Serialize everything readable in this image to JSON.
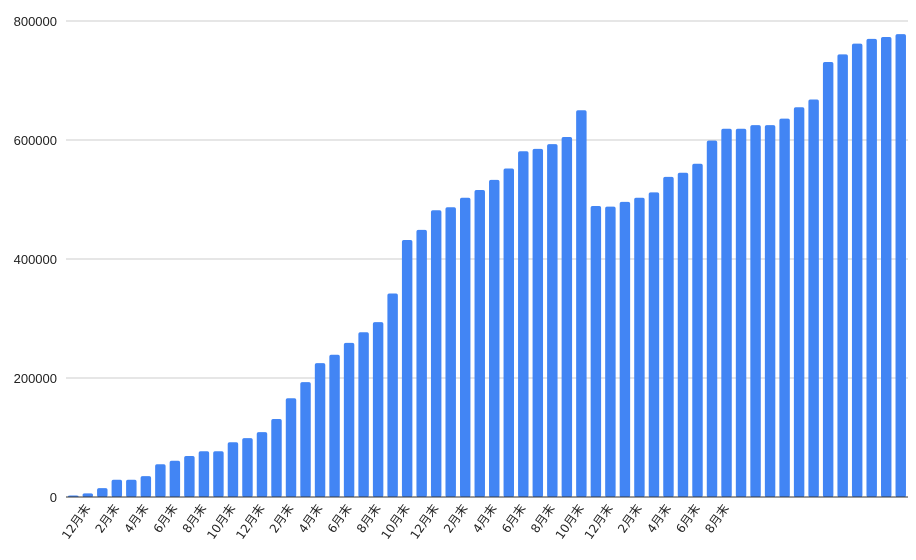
{
  "chart_data": {
    "type": "bar",
    "title": "",
    "xlabel": "",
    "ylabel": "",
    "ylim": [
      0,
      800000
    ],
    "yticks": [
      "0",
      "200000",
      "400000",
      "600000",
      "800000"
    ],
    "grid": true,
    "legend": "none",
    "bar_color": "#4285f4",
    "x_labels_shown": [
      "12月末",
      "2月末",
      "4月末",
      "6月末",
      "8月末",
      "10月末",
      "12月末",
      "2月末",
      "4月末",
      "6月末",
      "8月末",
      "10月末",
      "12月末",
      "2月末",
      "4月末",
      "6月末",
      "8月末",
      "10月末",
      "12月末",
      "2月末",
      "4月末",
      "6月末",
      "8月末"
    ],
    "values": [
      2000,
      6000,
      15000,
      29000,
      29000,
      35000,
      55000,
      61000,
      69000,
      77000,
      77000,
      92000,
      99000,
      109000,
      131000,
      166000,
      193000,
      225000,
      239000,
      259000,
      277000,
      294000,
      342000,
      432000,
      449000,
      482000,
      487000,
      503000,
      516000,
      533000,
      552000,
      581000,
      585000,
      593000,
      605000,
      650000,
      489000,
      488000,
      496000,
      503000,
      512000,
      538000,
      545000,
      560000,
      599000,
      619000,
      619000,
      625000,
      625000,
      636000,
      655000,
      668000,
      731000,
      744000,
      762000,
      770000,
      773000,
      778000
    ]
  }
}
